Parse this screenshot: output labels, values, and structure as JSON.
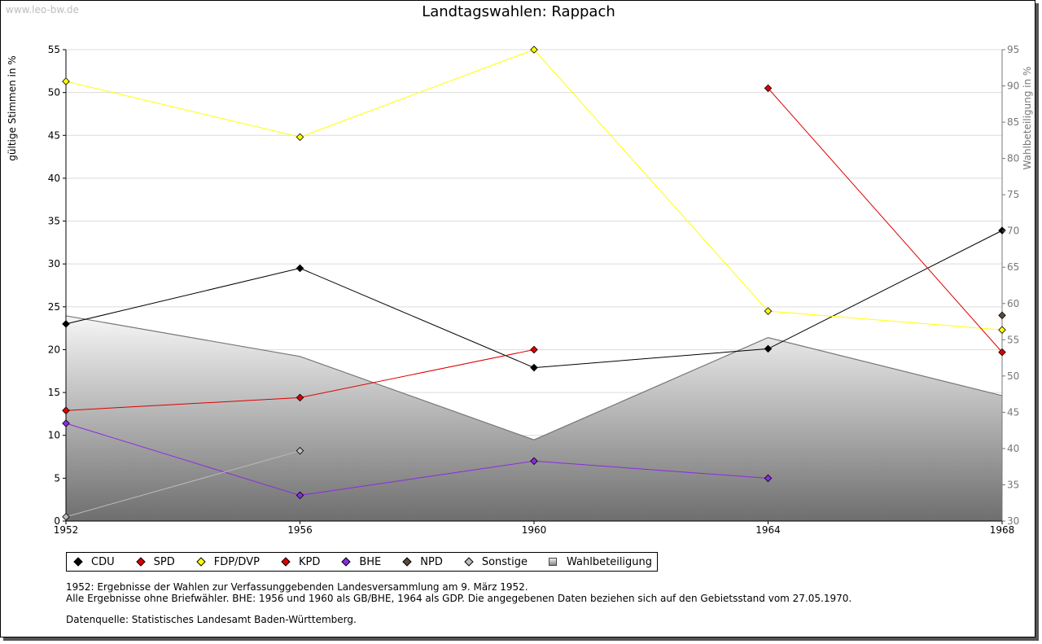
{
  "watermark": "www.leo-bw.de",
  "chart_data": {
    "type": "line",
    "title": "Landtagswahlen: Rappach",
    "ylabel_left": "gültige Stimmen in %",
    "ylabel_right": "Wahlbeteiligung in %",
    "x": [
      1952,
      1956,
      1960,
      1964,
      1968
    ],
    "x_ticks": [
      "1952",
      "1956",
      "1960",
      "1964",
      "1968"
    ],
    "ylim_left": [
      0,
      55
    ],
    "yticks_left": [
      0,
      5,
      10,
      15,
      20,
      25,
      30,
      35,
      40,
      45,
      50,
      55
    ],
    "ylim_right": [
      30,
      95
    ],
    "yticks_right": [
      30,
      35,
      40,
      45,
      50,
      55,
      60,
      65,
      70,
      75,
      80,
      85,
      90,
      95
    ],
    "grid": true,
    "area": {
      "name": "Wahlbeteiligung",
      "axis": "right",
      "values": [
        58.3,
        52.7,
        41.2,
        55.3,
        47.3
      ],
      "color": "#777777"
    },
    "series": [
      {
        "name": "CDU",
        "color": "#000000",
        "values": [
          23.0,
          29.5,
          17.9,
          20.1,
          33.9
        ]
      },
      {
        "name": "SPD",
        "color": "#dd0000",
        "values": [
          12.9,
          14.4,
          20.0,
          null,
          null
        ]
      },
      {
        "name": "FDP/DVP",
        "color": "#ffff00",
        "values": [
          51.3,
          44.8,
          55.0,
          24.5,
          22.3
        ]
      },
      {
        "name": "KPD",
        "color": "#dd0000",
        "values": [
          null,
          null,
          null,
          50.5,
          19.7
        ]
      },
      {
        "name": "BHE",
        "color": "#8a2be2",
        "values": [
          11.4,
          3.0,
          7.0,
          5.0,
          null
        ]
      },
      {
        "name": "NPD",
        "color": "#5a4a3a",
        "values": [
          null,
          null,
          null,
          null,
          24.0
        ]
      },
      {
        "name": "Sonstige",
        "color": "#bbbbbb",
        "values": [
          0.5,
          8.2,
          null,
          null,
          null
        ]
      }
    ],
    "legend": [
      "CDU",
      "SPD",
      "FDP/DVP",
      "KPD",
      "BHE",
      "NPD",
      "Sonstige",
      "Wahlbeteiligung"
    ],
    "legend_position": "bottom-left"
  },
  "legend_colors": {
    "CDU": "#000000",
    "SPD": "#dd0000",
    "FDP/DVP": "#ffff00",
    "KPD": "#dd0000",
    "BHE": "#8a2be2",
    "NPD": "#5a4a3a",
    "Sonstige": "#bbbbbb"
  },
  "notes": {
    "line1": "1952: Ergebnisse der Wahlen zur Verfassunggebenden Landesversammlung am 9. März 1952.",
    "line2": "Alle Ergebnisse ohne Briefwähler. BHE: 1956 und 1960 als GB/BHE, 1964 als GDP. Die angegebenen Daten beziehen sich auf den Gebietsstand vom 27.05.1970.",
    "source": "Datenquelle: Statistisches Landesamt Baden-Württemberg."
  }
}
